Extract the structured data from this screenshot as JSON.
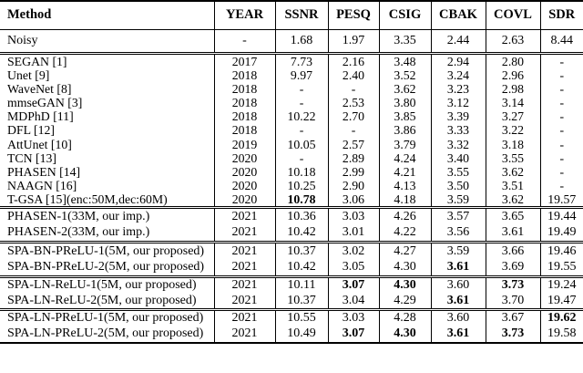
{
  "colors": {
    "background": "#ffffff",
    "text": "#000000",
    "rule": "#000000"
  },
  "table": {
    "columns": [
      "Method",
      "YEAR",
      "SSNR",
      "PESQ",
      "CSIG",
      "CBAK",
      "COVL",
      "SDR"
    ],
    "groups": [
      {
        "rows": [
          {
            "method": "Noisy",
            "values": [
              "-",
              "1.68",
              "1.97",
              "3.35",
              "2.44",
              "2.63",
              "8.44"
            ],
            "bold": []
          }
        ]
      },
      {
        "rows": [
          {
            "method": "SEGAN [1]",
            "values": [
              "2017",
              "7.73",
              "2.16",
              "3.48",
              "2.94",
              "2.80",
              "-"
            ],
            "bold": []
          },
          {
            "method": "Unet [9]",
            "values": [
              "2018",
              "9.97",
              "2.40",
              "3.52",
              "3.24",
              "2.96",
              "-"
            ],
            "bold": []
          },
          {
            "method": "WaveNet [8]",
            "values": [
              "2018",
              "-",
              "-",
              "3.62",
              "3.23",
              "2.98",
              "-"
            ],
            "bold": []
          },
          {
            "method": "mmseGAN [3]",
            "values": [
              "2018",
              "-",
              "2.53",
              "3.80",
              "3.12",
              "3.14",
              "-"
            ],
            "bold": []
          },
          {
            "method": "MDPhD [11]",
            "values": [
              "2018",
              "10.22",
              "2.70",
              "3.85",
              "3.39",
              "3.27",
              "-"
            ],
            "bold": []
          },
          {
            "method": "DFL [12]",
            "values": [
              "2018",
              "-",
              "-",
              "3.86",
              "3.33",
              "3.22",
              "-"
            ],
            "bold": []
          },
          {
            "method": "AttUnet [10]",
            "values": [
              "2019",
              "10.05",
              "2.57",
              "3.79",
              "3.32",
              "3.18",
              "-"
            ],
            "bold": []
          },
          {
            "method": "TCN [13]",
            "values": [
              "2020",
              "-",
              "2.89",
              "4.24",
              "3.40",
              "3.55",
              "-"
            ],
            "bold": []
          },
          {
            "method": "PHASEN [14]",
            "values": [
              "2020",
              "10.18",
              "2.99",
              "4.21",
              "3.55",
              "3.62",
              "-"
            ],
            "bold": []
          },
          {
            "method": "NAAGN [16]",
            "values": [
              "2020",
              "10.25",
              "2.90",
              "4.13",
              "3.50",
              "3.51",
              "-"
            ],
            "bold": []
          },
          {
            "method": "T-GSA [15](enc:50M,dec:60M)",
            "values": [
              "2020",
              "10.78",
              "3.06",
              "4.18",
              "3.59",
              "3.62",
              "19.57"
            ],
            "bold": [
              1
            ]
          }
        ]
      },
      {
        "rows": [
          {
            "method": "PHASEN-1(33M, our imp.)",
            "values": [
              "2021",
              "10.36",
              "3.03",
              "4.26",
              "3.57",
              "3.65",
              "19.44"
            ],
            "bold": []
          },
          {
            "method": "PHASEN-2(33M, our imp.)",
            "values": [
              "2021",
              "10.42",
              "3.01",
              "4.22",
              "3.56",
              "3.61",
              "19.49"
            ],
            "bold": []
          }
        ]
      },
      {
        "rows": [
          {
            "method": "SPA-BN-PReLU-1(5M, our proposed)",
            "values": [
              "2021",
              "10.37",
              "3.02",
              "4.27",
              "3.59",
              "3.66",
              "19.46"
            ],
            "bold": []
          },
          {
            "method": "SPA-BN-PReLU-2(5M, our proposed)",
            "values": [
              "2021",
              "10.42",
              "3.05",
              "4.30",
              "3.61",
              "3.69",
              "19.55"
            ],
            "bold": [
              4
            ]
          }
        ]
      },
      {
        "rows": [
          {
            "method": "SPA-LN-ReLU-1(5M, our proposed)",
            "values": [
              "2021",
              "10.11",
              "3.07",
              "4.30",
              "3.60",
              "3.73",
              "19.24"
            ],
            "bold": [
              2,
              3,
              5
            ]
          },
          {
            "method": "SPA-LN-ReLU-2(5M, our proposed)",
            "values": [
              "2021",
              "10.37",
              "3.04",
              "4.29",
              "3.61",
              "3.70",
              "19.47"
            ],
            "bold": [
              4
            ]
          }
        ]
      },
      {
        "rows": [
          {
            "method": "SPA-LN-PReLU-1(5M, our proposed)",
            "values": [
              "2021",
              "10.55",
              "3.03",
              "4.28",
              "3.60",
              "3.67",
              "19.62"
            ],
            "bold": [
              6
            ]
          },
          {
            "method": "SPA-LN-PReLU-2(5M, our proposed)",
            "values": [
              "2021",
              "10.49",
              "3.07",
              "4.30",
              "3.61",
              "3.73",
              "19.58"
            ],
            "bold": [
              2,
              3,
              4,
              5
            ]
          }
        ]
      }
    ]
  }
}
